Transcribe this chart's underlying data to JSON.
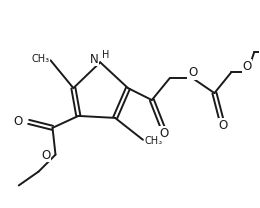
{
  "background": "#ffffff",
  "line_color": "#1a1a1a",
  "lw": 1.4,
  "fs": 8.5,
  "figsize": [
    2.6,
    2.08
  ],
  "dpi": 100,
  "xlim": [
    0,
    10
  ],
  "ylim": [
    0,
    8
  ]
}
